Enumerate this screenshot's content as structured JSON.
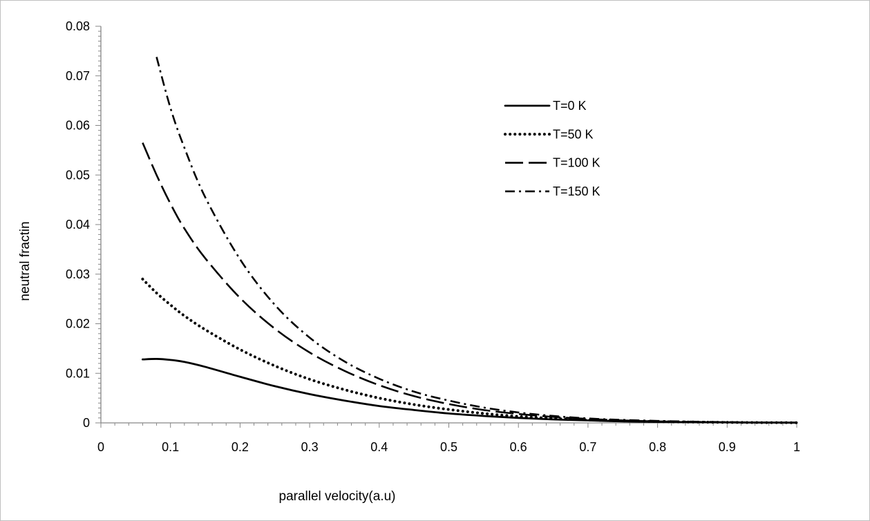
{
  "chart_data": {
    "type": "line",
    "title": "",
    "xlabel": "parallel  velocity(a.u)",
    "ylabel": "neutral  fractin",
    "xlim": [
      0,
      1
    ],
    "ylim": [
      0,
      0.08
    ],
    "xticks": [
      "0",
      "0.1",
      "0.2",
      "0.3",
      "0.4",
      "0.5",
      "0.6",
      "0.7",
      "0.8",
      "0.9",
      "1"
    ],
    "yticks": [
      "0",
      "0.01",
      "0.02",
      "0.03",
      "0.04",
      "0.05",
      "0.06",
      "0.07",
      "0.08"
    ],
    "grid": false,
    "legend_position": "top-right",
    "series": [
      {
        "name": "T=0 K",
        "style": "solid",
        "color": "#000000",
        "points": [
          [
            0.06,
            0.0128
          ],
          [
            0.08,
            0.0129
          ],
          [
            0.1,
            0.0127
          ],
          [
            0.12,
            0.0123
          ],
          [
            0.15,
            0.0113
          ],
          [
            0.2,
            0.0093
          ],
          [
            0.25,
            0.0074
          ],
          [
            0.3,
            0.0058
          ],
          [
            0.35,
            0.0045
          ],
          [
            0.4,
            0.0034
          ],
          [
            0.45,
            0.0026
          ],
          [
            0.5,
            0.0019
          ],
          [
            0.55,
            0.0014
          ],
          [
            0.6,
            0.001
          ],
          [
            0.65,
            0.0007
          ],
          [
            0.7,
            0.0005
          ],
          [
            0.75,
            0.0003
          ],
          [
            0.8,
            0.0002
          ],
          [
            0.85,
            0.00015
          ],
          [
            0.9,
            0.0001
          ],
          [
            0.95,
            6e-05
          ],
          [
            1.0,
            4e-05
          ]
        ]
      },
      {
        "name": "T=50 K",
        "style": "dotted",
        "color": "#000000",
        "points": [
          [
            0.06,
            0.029
          ],
          [
            0.08,
            0.0262
          ],
          [
            0.1,
            0.0238
          ],
          [
            0.12,
            0.0216
          ],
          [
            0.15,
            0.0188
          ],
          [
            0.2,
            0.0148
          ],
          [
            0.25,
            0.0115
          ],
          [
            0.3,
            0.0088
          ],
          [
            0.35,
            0.0067
          ],
          [
            0.4,
            0.005
          ],
          [
            0.45,
            0.0037
          ],
          [
            0.5,
            0.0027
          ],
          [
            0.55,
            0.0019
          ],
          [
            0.6,
            0.0013
          ],
          [
            0.65,
            0.0009
          ],
          [
            0.7,
            0.0006
          ],
          [
            0.75,
            0.0004
          ],
          [
            0.8,
            0.00026
          ],
          [
            0.85,
            0.00017
          ],
          [
            0.9,
            0.0001
          ],
          [
            0.95,
            6e-05
          ],
          [
            1.0,
            4e-05
          ]
        ]
      },
      {
        "name": "T=100 K",
        "style": "long-dash",
        "color": "#000000",
        "points": [
          [
            0.06,
            0.0565
          ],
          [
            0.08,
            0.05
          ],
          [
            0.1,
            0.0442
          ],
          [
            0.12,
            0.0392
          ],
          [
            0.15,
            0.0332
          ],
          [
            0.2,
            0.0252
          ],
          [
            0.25,
            0.019
          ],
          [
            0.3,
            0.0142
          ],
          [
            0.35,
            0.0105
          ],
          [
            0.4,
            0.0076
          ],
          [
            0.45,
            0.0054
          ],
          [
            0.5,
            0.0038
          ],
          [
            0.55,
            0.0026
          ],
          [
            0.6,
            0.0018
          ],
          [
            0.65,
            0.0012
          ],
          [
            0.7,
            0.0008
          ],
          [
            0.75,
            0.0005
          ],
          [
            0.8,
            0.0003
          ],
          [
            0.85,
            0.0002
          ],
          [
            0.9,
            0.00012
          ],
          [
            0.95,
            7e-05
          ],
          [
            1.0,
            4e-05
          ]
        ]
      },
      {
        "name": "T=150 K",
        "style": "dash-dot",
        "color": "#000000",
        "points": [
          [
            0.08,
            0.0738
          ],
          [
            0.1,
            0.0635
          ],
          [
            0.12,
            0.0555
          ],
          [
            0.15,
            0.0455
          ],
          [
            0.2,
            0.033
          ],
          [
            0.25,
            0.0238
          ],
          [
            0.3,
            0.0172
          ],
          [
            0.35,
            0.0124
          ],
          [
            0.4,
            0.0089
          ],
          [
            0.45,
            0.0063
          ],
          [
            0.5,
            0.0045
          ],
          [
            0.55,
            0.0031
          ],
          [
            0.6,
            0.0021
          ],
          [
            0.65,
            0.0014
          ],
          [
            0.7,
            0.0009
          ],
          [
            0.75,
            0.0006
          ],
          [
            0.8,
            0.0004
          ],
          [
            0.85,
            0.00025
          ],
          [
            0.9,
            0.00015
          ],
          [
            0.95,
            8e-05
          ],
          [
            1.0,
            5e-05
          ]
        ]
      }
    ]
  }
}
